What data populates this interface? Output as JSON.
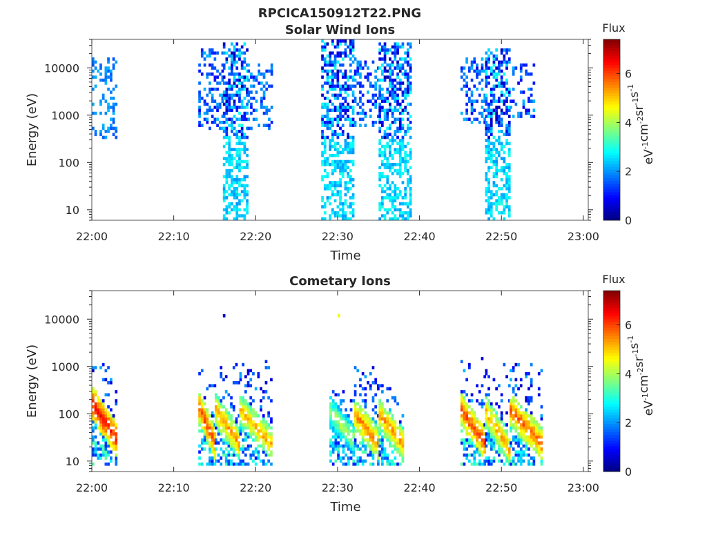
{
  "figure_title": "RPCICA150912T22.PNG",
  "colors": {
    "colormap": "jet",
    "axis": "#262626",
    "background": "#ffffff"
  },
  "chart_data": [
    {
      "type": "heatmap",
      "title": "Solar Wind Ions",
      "xlabel": "Time",
      "ylabel": "Energy (eV)",
      "x_range": [
        "22:00",
        "23:00"
      ],
      "x_ticks": [
        "22:00",
        "22:10",
        "22:20",
        "22:30",
        "22:40",
        "22:50",
        "23:00"
      ],
      "y_scale": "log",
      "ylim": [
        6,
        40000
      ],
      "y_ticks": [
        10,
        100,
        1000,
        10000
      ],
      "y_tick_labels": [
        "10",
        "100",
        "1000",
        "10000"
      ],
      "colorbar": {
        "title": "Flux",
        "label_parts": [
          "eV",
          "-1",
          "cm",
          "-2",
          "sr",
          "-1",
          "s",
          "-1"
        ],
        "range": [
          0,
          7.4
        ],
        "ticks": [
          0,
          2,
          4,
          6
        ],
        "tick_labels": [
          "0",
          "2",
          "4",
          "6"
        ]
      },
      "bursts": [
        {
          "start": "22:00",
          "end": "22:03",
          "e_low": 300,
          "e_high": 15000,
          "flux_min": 1.5,
          "flux_max": 2.3
        },
        {
          "start": "22:13",
          "end": "22:16",
          "e_low": 450,
          "e_high": 25000,
          "flux_min": 0.8,
          "flux_max": 2.3
        },
        {
          "start": "22:16",
          "end": "22:19",
          "e_low": 6,
          "e_high": 30000,
          "flux_min": 0.3,
          "flux_max": 3.0
        },
        {
          "start": "22:19",
          "end": "22:22",
          "e_low": 450,
          "e_high": 12000,
          "flux_min": 1.0,
          "flux_max": 2.3
        },
        {
          "start": "22:28",
          "end": "22:32",
          "e_low": 6,
          "e_high": 35000,
          "flux_min": 0.3,
          "flux_max": 3.0
        },
        {
          "start": "22:32",
          "end": "22:35",
          "e_low": 500,
          "e_high": 15000,
          "flux_min": 0.8,
          "flux_max": 2.3
        },
        {
          "start": "22:35",
          "end": "22:39",
          "e_low": 6,
          "e_high": 30000,
          "flux_min": 0.3,
          "flux_max": 3.0
        },
        {
          "start": "22:45",
          "end": "22:48",
          "e_low": 600,
          "e_high": 15000,
          "flux_min": 0.8,
          "flux_max": 2.3
        },
        {
          "start": "22:48",
          "end": "22:51",
          "e_low": 6,
          "e_high": 25000,
          "flux_min": 0.3,
          "flux_max": 3.0
        },
        {
          "start": "22:51",
          "end": "22:54",
          "e_low": 800,
          "e_high": 12000,
          "flux_min": 0.8,
          "flux_max": 2.3
        }
      ]
    },
    {
      "type": "heatmap",
      "title": "Cometary Ions",
      "xlabel": "Time",
      "ylabel": "Energy (eV)",
      "x_range": [
        "22:00",
        "23:00"
      ],
      "x_ticks": [
        "22:00",
        "22:10",
        "22:20",
        "22:30",
        "22:40",
        "22:50",
        "23:00"
      ],
      "y_scale": "log",
      "ylim": [
        6,
        40000
      ],
      "y_ticks": [
        10,
        100,
        1000,
        10000
      ],
      "y_tick_labels": [
        "10",
        "100",
        "1000",
        "10000"
      ],
      "colorbar": {
        "title": "Flux",
        "label_parts": [
          "eV",
          "-1",
          "cm",
          "-2",
          "sr",
          "-1",
          "s",
          "-1"
        ],
        "range": [
          0,
          7.4
        ],
        "ticks": [
          0,
          2,
          4,
          6
        ],
        "tick_labels": [
          "0",
          "2",
          "4",
          "6"
        ]
      },
      "bursts": [
        {
          "start": "22:00",
          "end": "22:03",
          "e_high": 1200,
          "peak_start_e": 150,
          "peak_end_e": 25,
          "peak_flux": 6.4
        },
        {
          "start": "22:13",
          "end": "22:15",
          "e_high": 1100,
          "peak_start_e": 120,
          "peak_end_e": 20,
          "peak_flux": 6.0
        },
        {
          "start": "22:15",
          "end": "22:18",
          "e_high": 1200,
          "peak_start_e": 110,
          "peak_end_e": 20,
          "peak_flux": 5.4
        },
        {
          "start": "22:18",
          "end": "22:22",
          "e_high": 1200,
          "peak_start_e": 110,
          "peak_end_e": 20,
          "peak_flux": 5.3
        },
        {
          "start": "22:29",
          "end": "22:32",
          "e_high": 300,
          "peak_start_e": 100,
          "peak_end_e": 25,
          "peak_flux": 4.2
        },
        {
          "start": "22:32",
          "end": "22:35",
          "e_high": 1200,
          "peak_start_e": 90,
          "peak_end_e": 20,
          "peak_flux": 5.6
        },
        {
          "start": "22:35",
          "end": "22:38",
          "e_high": 400,
          "peak_start_e": 90,
          "peak_end_e": 20,
          "peak_flux": 5.4
        },
        {
          "start": "22:45",
          "end": "22:48",
          "e_high": 1500,
          "peak_start_e": 110,
          "peak_end_e": 20,
          "peak_flux": 6.0
        },
        {
          "start": "22:48",
          "end": "22:51",
          "e_high": 1300,
          "peak_start_e": 100,
          "peak_end_e": 15,
          "peak_flux": 5.3
        },
        {
          "start": "22:51",
          "end": "22:55",
          "e_high": 1300,
          "peak_start_e": 110,
          "peak_end_e": 20,
          "peak_flux": 5.8
        }
      ],
      "isolated_points": [
        {
          "time": "22:16",
          "energy": 11000,
          "flux": 0.6
        },
        {
          "time": "22:30",
          "energy": 11000,
          "flux": 4.5
        }
      ]
    }
  ]
}
